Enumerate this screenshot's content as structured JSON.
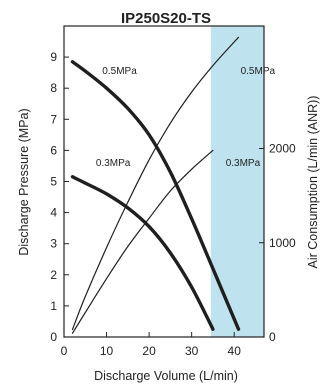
{
  "chart_data": {
    "type": "line",
    "title": "IP250S20-TS",
    "xlabel": "Discharge Volume (L/min)",
    "ylabel_left": "Discharge Pressure (MPa)",
    "ylabel_right": "Air Consumption (L/min (ANR))",
    "xlim": [
      0,
      47
    ],
    "ylim_left": [
      0,
      10
    ],
    "ylim_right": [
      0,
      3300
    ],
    "x_ticks": [
      0,
      10,
      20,
      30,
      40
    ],
    "y_ticks_left": [
      0,
      1,
      2,
      3,
      4,
      5,
      6,
      7,
      8,
      9
    ],
    "y_ticks_right": [
      0,
      1000,
      2000
    ],
    "shaded_region": {
      "x_from": 34.5,
      "x_to": 47,
      "color": "#bfe3ee"
    },
    "grid": false,
    "series": [
      {
        "name": "0.5MPa",
        "axis": "left",
        "style": "thick",
        "x": [
          2,
          5,
          10,
          15,
          20,
          25,
          30,
          35,
          41
        ],
        "y": [
          8.85,
          8.55,
          8.0,
          7.35,
          6.5,
          5.3,
          3.8,
          2.2,
          0.25
        ]
      },
      {
        "name": "0.3MPa",
        "axis": "left",
        "style": "thick",
        "x": [
          2,
          5,
          10,
          15,
          20,
          25,
          30,
          35
        ],
        "y": [
          5.15,
          4.95,
          4.6,
          4.15,
          3.55,
          2.7,
          1.6,
          0.25
        ]
      },
      {
        "name": "0.5MPa",
        "axis": "right",
        "style": "thin",
        "x": [
          2,
          5,
          10,
          15,
          20,
          25,
          30,
          35,
          41
        ],
        "y": [
          80,
          430,
          950,
          1430,
          1880,
          2270,
          2600,
          2880,
          3180
        ]
      },
      {
        "name": "0.3MPa",
        "axis": "right",
        "style": "thin",
        "x": [
          2,
          5,
          10,
          15,
          20,
          25,
          30,
          35
        ],
        "y": [
          40,
          260,
          620,
          960,
          1260,
          1550,
          1780,
          1980
        ]
      }
    ],
    "annotations": [
      {
        "text": "0.5MPa",
        "x": 9,
        "y": 8.45
      },
      {
        "text": "0.3MPa",
        "x": 7.5,
        "y": 5.5
      },
      {
        "text": "0.5MPa",
        "x": 41.5,
        "y": 8.45
      },
      {
        "text": "0.3MPa",
        "x": 38,
        "y": 5.5
      }
    ]
  }
}
